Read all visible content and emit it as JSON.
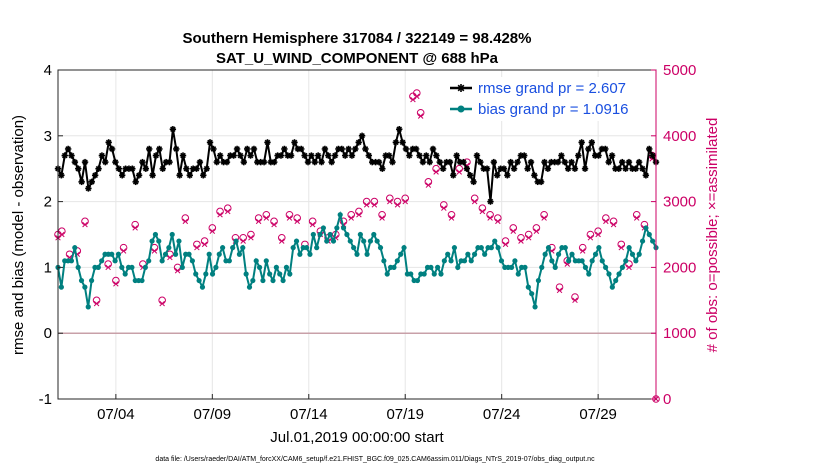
{
  "chart_data": {
    "type": "line",
    "title": [
      "Southern Hemisphere 317084 / 322149 = 98.428%",
      "SAT_U_WIND_COMPONENT @ 688 hPa"
    ],
    "xlabel": "Jul.01,2019 00:00:00 start",
    "ylabel_left": "rmse and bias (model - observation)",
    "ylabel_right": "# of obs: o=possible; ×=assimilated",
    "footnote": "data file: /Users/raeder/DAI/ATM_forcXX/CAM6_setup/f.e21.FHIST_BGC.f09_025.CAM6assim.011/Diags_NTrS_2019-07/obs_diag_output.nc",
    "x_range_days": [
      0,
      31
    ],
    "x_ticks": [
      {
        "day": 3,
        "label": "07/04"
      },
      {
        "day": 8,
        "label": "07/09"
      },
      {
        "day": 13,
        "label": "07/14"
      },
      {
        "day": 18,
        "label": "07/19"
      },
      {
        "day": 23,
        "label": "07/24"
      },
      {
        "day": 28,
        "label": "07/29"
      }
    ],
    "ylim_left": [
      -1,
      4
    ],
    "yticks_left": [
      -1,
      0,
      1,
      2,
      3,
      4
    ],
    "ylim_right": [
      0,
      5000
    ],
    "yticks_right": [
      0,
      1000,
      2000,
      3000,
      4000,
      5000
    ],
    "grid": true,
    "zero_line": 0,
    "legend": {
      "placement": "top-right",
      "entries": [
        {
          "label": "rmse grand pr = 2.607",
          "color": "#000000",
          "marker": "star"
        },
        {
          "label": "bias grand pr = 1.0916",
          "color": "#008080",
          "marker": "circle"
        }
      ]
    },
    "colors": {
      "rmse": "#000000",
      "bias": "#008080",
      "obs": "#cc0066",
      "zero_line": "#c8a0a8",
      "grid": "#e6e6e6",
      "legend_text": "#1a4fe0"
    },
    "rmse": [
      2.5,
      2.4,
      2.7,
      2.8,
      2.7,
      2.6,
      2.5,
      2.3,
      2.6,
      2.2,
      2.3,
      2.4,
      2.5,
      2.7,
      2.6,
      2.9,
      2.8,
      2.6,
      2.5,
      2.4,
      2.5,
      2.5,
      2.5,
      2.3,
      2.4,
      2.6,
      2.5,
      2.8,
      2.4,
      2.7,
      2.8,
      2.5,
      2.6,
      2.6,
      3.1,
      2.8,
      2.4,
      2.7,
      2.5,
      2.4,
      2.5,
      2.5,
      2.6,
      2.4,
      2.5,
      2.9,
      2.8,
      2.6,
      2.7,
      2.6,
      2.6,
      2.7,
      2.7,
      2.8,
      2.7,
      2.6,
      2.8,
      2.7,
      2.8,
      2.6,
      2.6,
      2.6,
      2.9,
      2.6,
      2.6,
      2.7,
      2.7,
      2.8,
      2.7,
      2.7,
      2.9,
      2.8,
      2.8,
      2.7,
      2.6,
      2.7,
      2.6,
      2.7,
      2.6,
      2.8,
      2.7,
      2.6,
      2.7,
      2.8,
      2.8,
      2.7,
      2.8,
      2.7,
      2.8,
      2.9,
      3.0,
      2.8,
      2.7,
      2.6,
      2.6,
      2.6,
      2.5,
      2.7,
      2.7,
      2.6,
      2.9,
      3.1,
      2.9,
      2.8,
      2.7,
      2.8,
      2.8,
      2.7,
      2.6,
      2.7,
      2.6,
      2.8,
      2.7,
      2.6,
      2.5,
      2.6,
      2.6,
      2.4,
      2.7,
      2.6,
      2.6,
      2.5,
      2.4,
      2.3,
      2.7,
      2.6,
      2.5,
      2.5,
      2.0,
      2.6,
      2.4,
      2.5,
      2.5,
      2.4,
      2.6,
      2.5,
      2.6,
      2.7,
      2.7,
      2.5,
      2.6,
      2.4,
      2.3,
      2.3,
      2.6,
      2.5,
      2.6,
      2.6,
      2.6,
      2.7,
      2.6,
      2.5,
      2.6,
      2.5,
      2.7,
      2.9,
      2.5,
      2.8,
      2.9,
      2.7,
      2.7,
      2.8,
      2.8,
      2.6,
      2.7,
      2.5,
      2.5,
      2.6,
      2.5,
      2.6,
      2.5,
      2.5,
      2.6,
      2.5,
      2.4,
      2.8,
      2.7,
      2.6
    ],
    "bias": [
      1.0,
      0.7,
      1.1,
      1.1,
      1.1,
      1.3,
      1.0,
      0.8,
      0.7,
      0.4,
      0.8,
      1.0,
      1.0,
      1.1,
      1.2,
      1.2,
      1.2,
      1.1,
      1.2,
      1.0,
      0.9,
      1.0,
      1.0,
      0.8,
      0.8,
      0.8,
      1.0,
      1.1,
      1.4,
      1.5,
      1.4,
      1.1,
      1.2,
      1.3,
      1.5,
      1.2,
      1.4,
      1.0,
      1.2,
      1.2,
      1.1,
      0.9,
      0.8,
      0.7,
      0.9,
      1.2,
      0.9,
      1.0,
      1.2,
      1.3,
      1.1,
      1.1,
      1.3,
      1.4,
      1.2,
      1.3,
      0.9,
      0.7,
      0.8,
      1.1,
      1.0,
      0.8,
      1.1,
      0.9,
      0.8,
      1.0,
      0.9,
      0.8,
      1.0,
      0.9,
      1.3,
      1.4,
      1.2,
      1.3,
      1.3,
      1.2,
      1.5,
      1.3,
      1.5,
      1.6,
      1.4,
      1.5,
      1.4,
      1.6,
      1.8,
      1.6,
      1.5,
      1.4,
      1.3,
      1.2,
      1.5,
      1.4,
      1.2,
      1.4,
      1.5,
      1.4,
      1.3,
      1.1,
      0.9,
      1.0,
      1.0,
      1.1,
      1.2,
      1.3,
      0.9,
      0.9,
      0.8,
      0.8,
      0.9,
      0.9,
      1.0,
      1.0,
      0.9,
      1.0,
      0.9,
      1.1,
      1.2,
      1.1,
      1.3,
      1.0,
      1.1,
      1.1,
      1.2,
      1.1,
      1.2,
      1.3,
      1.3,
      1.2,
      1.3,
      1.3,
      1.4,
      1.3,
      1.1,
      1.0,
      1.0,
      1.0,
      1.1,
      0.9,
      1.0,
      1.0,
      0.7,
      0.6,
      0.4,
      0.8,
      1.0,
      1.2,
      1.3,
      1.1,
      1.0,
      1.2,
      1.3,
      1.3,
      1.1,
      1.2,
      1.1,
      1.1,
      1.1,
      1.0,
      0.9,
      1.1,
      1.2,
      1.3,
      1.1,
      1.0,
      0.9,
      0.7,
      0.8,
      0.9,
      1.0,
      1.1,
      1.3,
      1.2,
      1.1,
      1.2,
      1.4,
      1.6,
      1.5,
      1.4,
      1.3
    ],
    "obs_possible": [
      [
        0.0,
        2500
      ],
      [
        0.2,
        2550
      ],
      [
        0.6,
        2200
      ],
      [
        1.0,
        2250
      ],
      [
        1.4,
        2700
      ],
      [
        2.0,
        1500
      ],
      [
        2.6,
        2050
      ],
      [
        3.0,
        1800
      ],
      [
        3.4,
        2300
      ],
      [
        4.0,
        2650
      ],
      [
        4.4,
        2050
      ],
      [
        5.0,
        2300
      ],
      [
        5.4,
        1500
      ],
      [
        5.8,
        2200
      ],
      [
        6.2,
        2000
      ],
      [
        6.6,
        2750
      ],
      [
        7.2,
        2350
      ],
      [
        7.6,
        2400
      ],
      [
        8.0,
        2600
      ],
      [
        8.4,
        2850
      ],
      [
        8.8,
        2900
      ],
      [
        9.2,
        2450
      ],
      [
        9.6,
        2450
      ],
      [
        10.0,
        2500
      ],
      [
        10.4,
        2750
      ],
      [
        10.8,
        2800
      ],
      [
        11.2,
        2700
      ],
      [
        11.6,
        2450
      ],
      [
        12.0,
        2800
      ],
      [
        12.4,
        2750
      ],
      [
        12.8,
        2350
      ],
      [
        13.2,
        2700
      ],
      [
        13.6,
        2550
      ],
      [
        14.0,
        2450
      ],
      [
        14.4,
        2500
      ],
      [
        14.8,
        2700
      ],
      [
        15.2,
        2800
      ],
      [
        15.6,
        2850
      ],
      [
        16.0,
        3000
      ],
      [
        16.4,
        3000
      ],
      [
        16.8,
        2800
      ],
      [
        17.2,
        3050
      ],
      [
        17.6,
        3000
      ],
      [
        18.0,
        3050
      ],
      [
        18.4,
        4600
      ],
      [
        18.6,
        4650
      ],
      [
        18.8,
        4350
      ],
      [
        19.2,
        3300
      ],
      [
        19.6,
        3500
      ],
      [
        20.0,
        2950
      ],
      [
        20.4,
        2800
      ],
      [
        20.8,
        3500
      ],
      [
        21.2,
        3600
      ],
      [
        21.6,
        3050
      ],
      [
        22.0,
        2900
      ],
      [
        22.4,
        2800
      ],
      [
        22.8,
        2750
      ],
      [
        23.2,
        2400
      ],
      [
        23.6,
        2600
      ],
      [
        24.0,
        2450
      ],
      [
        24.4,
        2500
      ],
      [
        24.8,
        2600
      ],
      [
        25.2,
        2800
      ],
      [
        25.6,
        2300
      ],
      [
        26.0,
        1700
      ],
      [
        26.4,
        2100
      ],
      [
        26.8,
        1550
      ],
      [
        27.2,
        2300
      ],
      [
        27.6,
        2500
      ],
      [
        28.0,
        2550
      ],
      [
        28.4,
        2750
      ],
      [
        28.8,
        2700
      ],
      [
        29.2,
        2350
      ],
      [
        29.6,
        2050
      ],
      [
        30.0,
        2800
      ],
      [
        30.4,
        2650
      ],
      [
        30.8,
        3700
      ],
      [
        31.0,
        0
      ]
    ],
    "obs_assimilated": [
      [
        0.0,
        2450
      ],
      [
        0.2,
        2500
      ],
      [
        0.6,
        2150
      ],
      [
        1.0,
        2200
      ],
      [
        1.4,
        2650
      ],
      [
        2.0,
        1450
      ],
      [
        2.6,
        2000
      ],
      [
        3.0,
        1750
      ],
      [
        3.4,
        2250
      ],
      [
        4.0,
        2600
      ],
      [
        4.4,
        2000
      ],
      [
        5.0,
        2250
      ],
      [
        5.4,
        1450
      ],
      [
        5.8,
        2150
      ],
      [
        6.2,
        1950
      ],
      [
        6.6,
        2700
      ],
      [
        7.2,
        2300
      ],
      [
        7.6,
        2350
      ],
      [
        8.0,
        2550
      ],
      [
        8.4,
        2800
      ],
      [
        8.8,
        2850
      ],
      [
        9.2,
        2400
      ],
      [
        9.6,
        2400
      ],
      [
        10.0,
        2450
      ],
      [
        10.4,
        2700
      ],
      [
        10.8,
        2750
      ],
      [
        11.2,
        2650
      ],
      [
        11.6,
        2400
      ],
      [
        12.0,
        2750
      ],
      [
        12.4,
        2700
      ],
      [
        12.8,
        2300
      ],
      [
        13.2,
        2650
      ],
      [
        13.6,
        2500
      ],
      [
        14.0,
        2400
      ],
      [
        14.4,
        2450
      ],
      [
        14.8,
        2650
      ],
      [
        15.2,
        2750
      ],
      [
        15.6,
        2800
      ],
      [
        16.0,
        2950
      ],
      [
        16.4,
        2950
      ],
      [
        16.8,
        2750
      ],
      [
        17.2,
        3000
      ],
      [
        17.6,
        2950
      ],
      [
        18.0,
        3000
      ],
      [
        18.4,
        4550
      ],
      [
        18.6,
        4600
      ],
      [
        18.8,
        4300
      ],
      [
        19.2,
        3250
      ],
      [
        19.6,
        3450
      ],
      [
        20.0,
        2900
      ],
      [
        20.4,
        2750
      ],
      [
        20.8,
        3450
      ],
      [
        21.2,
        3550
      ],
      [
        21.6,
        3000
      ],
      [
        22.0,
        2850
      ],
      [
        22.4,
        2750
      ],
      [
        22.8,
        2700
      ],
      [
        23.2,
        2350
      ],
      [
        23.6,
        2550
      ],
      [
        24.0,
        2400
      ],
      [
        24.4,
        2450
      ],
      [
        24.8,
        2550
      ],
      [
        25.2,
        2750
      ],
      [
        25.6,
        2250
      ],
      [
        26.0,
        1650
      ],
      [
        26.4,
        2050
      ],
      [
        26.8,
        1500
      ],
      [
        27.2,
        2250
      ],
      [
        27.6,
        2450
      ],
      [
        28.0,
        2500
      ],
      [
        28.4,
        2700
      ],
      [
        28.8,
        2650
      ],
      [
        29.2,
        2300
      ],
      [
        29.6,
        2000
      ],
      [
        30.0,
        2750
      ],
      [
        30.4,
        2600
      ],
      [
        30.8,
        3650
      ],
      [
        31.0,
        0
      ]
    ]
  }
}
